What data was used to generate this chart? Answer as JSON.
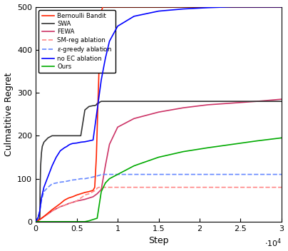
{
  "xlabel": "Step",
  "ylabel": "Culmatitive Regret",
  "xlim": [
    0,
    30000
  ],
  "ylim": [
    0,
    500
  ],
  "colors": {
    "bernoulli": "#ff2200",
    "swa": "#333333",
    "fewa": "#cc3366",
    "sm_reg": "#ff8888",
    "eps_greedy": "#6688ff",
    "no_ec": "#0000ff",
    "ours": "#00aa00"
  },
  "bernoulli_x": [
    0,
    500,
    1000,
    1500,
    2000,
    2500,
    3000,
    3500,
    4000,
    4500,
    5000,
    5500,
    6000,
    6500,
    7000,
    7200,
    7400,
    7600,
    7800,
    8000,
    8200,
    8500,
    9000,
    10000,
    30000
  ],
  "bernoulli_y": [
    0,
    5,
    12,
    20,
    28,
    35,
    42,
    50,
    55,
    58,
    62,
    65,
    68,
    70,
    73,
    80,
    150,
    280,
    400,
    490,
    500,
    500,
    500,
    500,
    500
  ],
  "swa_x": [
    0,
    200,
    400,
    500,
    520,
    540,
    600,
    700,
    800,
    1000,
    1500,
    2000,
    3500,
    3700,
    3900,
    4000,
    5000,
    5500,
    6000,
    6500,
    7000,
    7200,
    7400,
    7500,
    7700,
    7800,
    8000,
    30000
  ],
  "swa_y": [
    0,
    2,
    5,
    10,
    30,
    80,
    130,
    160,
    175,
    185,
    195,
    200,
    200,
    200,
    200,
    200,
    200,
    200,
    260,
    268,
    270,
    270,
    272,
    275,
    276,
    278,
    280,
    280
  ],
  "fewa_x": [
    0,
    500,
    1000,
    1500,
    2000,
    2500,
    3000,
    3500,
    4000,
    4500,
    5000,
    5500,
    6000,
    6500,
    7000,
    7500,
    8000,
    8500,
    9000,
    10000,
    12000,
    15000,
    18000,
    21000,
    24000,
    27000,
    30000
  ],
  "fewa_y": [
    0,
    5,
    12,
    18,
    25,
    30,
    35,
    38,
    42,
    45,
    48,
    50,
    52,
    55,
    58,
    65,
    75,
    130,
    180,
    220,
    240,
    255,
    265,
    272,
    276,
    280,
    285
  ],
  "sm_reg_x": [
    0,
    500,
    1000,
    1500,
    2000,
    2500,
    3000,
    3500,
    4000,
    4500,
    5000,
    5500,
    6000,
    6500,
    7000,
    7200,
    7400,
    7500,
    7700,
    8000,
    9000,
    30000
  ],
  "sm_reg_y": [
    0,
    5,
    12,
    18,
    25,
    30,
    35,
    38,
    42,
    45,
    48,
    55,
    62,
    65,
    70,
    72,
    75,
    78,
    80,
    80,
    80,
    80
  ],
  "eps_greedy_x": [
    0,
    300,
    500,
    700,
    1000,
    1500,
    2000,
    2500,
    3000,
    3500,
    4000,
    4500,
    5000,
    5500,
    6000,
    6500,
    7000,
    7200,
    7400,
    7600,
    7800,
    8000,
    30000
  ],
  "eps_greedy_y": [
    0,
    10,
    25,
    50,
    70,
    80,
    88,
    90,
    92,
    93,
    95,
    97,
    98,
    100,
    100,
    102,
    104,
    105,
    106,
    107,
    108,
    110,
    110
  ],
  "no_ec_x": [
    0,
    300,
    500,
    700,
    1000,
    1500,
    2000,
    2500,
    3000,
    3500,
    3800,
    4000,
    4200,
    4500,
    5000,
    5500,
    6000,
    6500,
    7000,
    7500,
    8000,
    8500,
    9000,
    10000,
    12000,
    15000,
    18000,
    21000,
    24000,
    27000,
    30000
  ],
  "no_ec_y": [
    0,
    10,
    25,
    55,
    80,
    105,
    130,
    150,
    165,
    172,
    175,
    178,
    180,
    182,
    183,
    185,
    186,
    188,
    190,
    260,
    330,
    380,
    420,
    455,
    478,
    490,
    495,
    498,
    500,
    500,
    500
  ],
  "ours_x": [
    0,
    500,
    1000,
    1500,
    2000,
    2500,
    3000,
    3500,
    4000,
    4500,
    5000,
    5500,
    6000,
    6500,
    7000,
    7500,
    8000,
    8500,
    9000,
    10000,
    12000,
    15000,
    18000,
    21000,
    24000,
    27000,
    30000
  ],
  "ours_y": [
    0,
    0,
    0,
    0,
    0,
    0,
    0,
    0,
    0,
    0,
    0,
    0,
    0,
    2,
    5,
    8,
    70,
    90,
    100,
    110,
    130,
    150,
    163,
    172,
    180,
    188,
    195
  ]
}
